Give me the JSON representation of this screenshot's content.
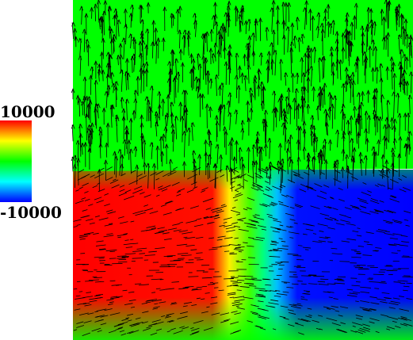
{
  "chart_data": {
    "type": "vector-field",
    "clim": [
      -10000,
      10000
    ],
    "cticks": [
      10000,
      -10000
    ]
  }
}
